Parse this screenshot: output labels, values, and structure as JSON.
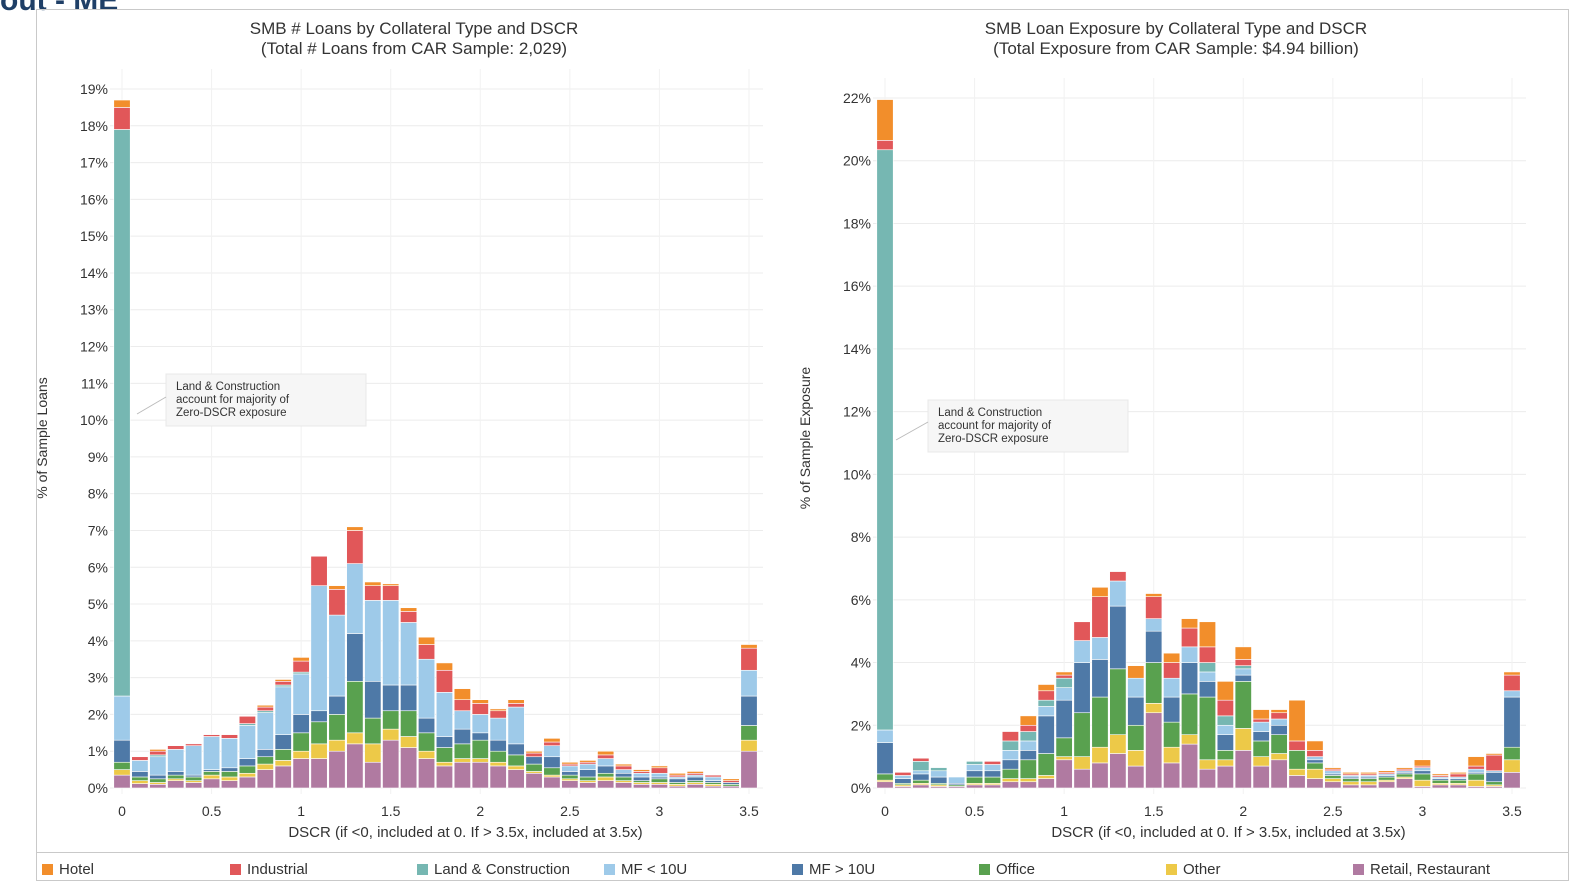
{
  "page_title": "out - ME",
  "colors": {
    "Hotel": "#f28e2b",
    "Industrial": "#e15759",
    "Land & Construction": "#76b7b2",
    "MF < 10U": "#9ecae9",
    "MF > 10U": "#4e79a7",
    "Office": "#59a14f",
    "Other": "#edc948",
    "Retail, Restaurant": "#b07aa1"
  },
  "legend": [
    "Hotel",
    "Industrial",
    "Land & Construction",
    "MF < 10U",
    "MF > 10U",
    "Office",
    "Other",
    "Retail, Restaurant"
  ],
  "chart_data": [
    {
      "type": "bar",
      "stacked": true,
      "title": "SMB # Loans by Collateral Type and DSCR",
      "subtitle": "(Total # Loans from CAR Sample: 2,029)",
      "xlabel": "DSCR (if <0, included at 0. If > 3.5x, included at 3.5x)",
      "ylabel": "% of Sample Loans",
      "xlim": [
        0,
        3.5
      ],
      "xticks": [
        "0",
        "0.5",
        "1",
        "1.5",
        "2",
        "2.5",
        "3",
        "3.5"
      ],
      "ylim": [
        0,
        19
      ],
      "yticks": [
        "0%",
        "1%",
        "2%",
        "3%",
        "4%",
        "5%",
        "6%",
        "7%",
        "8%",
        "9%",
        "10%",
        "11%",
        "12%",
        "13%",
        "14%",
        "15%",
        "16%",
        "17%",
        "18%",
        "19%"
      ],
      "annotation": [
        "Land & Construction",
        "account for majority of",
        "Zero-DSCR exposure"
      ],
      "x": [
        0,
        0.1,
        0.2,
        0.3,
        0.4,
        0.5,
        0.6,
        0.7,
        0.8,
        0.9,
        1.0,
        1.1,
        1.2,
        1.3,
        1.4,
        1.5,
        1.6,
        1.7,
        1.8,
        1.9,
        2.0,
        2.1,
        2.2,
        2.3,
        2.4,
        2.5,
        2.6,
        2.7,
        2.8,
        2.9,
        3.0,
        3.1,
        3.2,
        3.3,
        3.4,
        3.5
      ],
      "series": [
        {
          "name": "Retail, Restaurant",
          "values": [
            0.35,
            0.12,
            0.1,
            0.2,
            0.15,
            0.25,
            0.2,
            0.3,
            0.5,
            0.6,
            0.8,
            0.8,
            1.0,
            1.2,
            0.7,
            1.3,
            1.1,
            0.8,
            0.6,
            0.7,
            0.7,
            0.6,
            0.5,
            0.4,
            0.3,
            0.2,
            0.15,
            0.2,
            0.15,
            0.1,
            0.1,
            0.05,
            0.1,
            0.05,
            0.05,
            1.0
          ]
        },
        {
          "name": "Other",
          "values": [
            0.15,
            0.08,
            0.05,
            0.05,
            0.05,
            0.1,
            0.1,
            0.1,
            0.15,
            0.15,
            0.2,
            0.4,
            0.3,
            0.3,
            0.5,
            0.3,
            0.3,
            0.2,
            0.1,
            0.1,
            0.1,
            0.1,
            0.1,
            0.05,
            0.05,
            0.05,
            0.05,
            0.1,
            0.05,
            0.05,
            0.05,
            0.05,
            0.05,
            0.05,
            0.0,
            0.3
          ]
        },
        {
          "name": "Office",
          "values": [
            0.2,
            0.1,
            0.1,
            0.1,
            0.1,
            0.1,
            0.15,
            0.2,
            0.2,
            0.3,
            0.5,
            0.6,
            0.7,
            1.4,
            0.7,
            0.5,
            0.7,
            0.5,
            0.4,
            0.4,
            0.5,
            0.3,
            0.3,
            0.2,
            0.2,
            0.1,
            0.1,
            0.1,
            0.1,
            0.05,
            0.1,
            0.05,
            0.05,
            0.05,
            0.05,
            0.4
          ]
        },
        {
          "name": "MF > 10U",
          "values": [
            0.6,
            0.15,
            0.1,
            0.1,
            0.05,
            0.05,
            0.1,
            0.2,
            0.2,
            0.4,
            0.5,
            0.3,
            0.5,
            1.3,
            1.0,
            0.7,
            0.7,
            0.4,
            0.3,
            0.4,
            0.2,
            0.3,
            0.3,
            0.2,
            0.3,
            0.1,
            0.2,
            0.2,
            0.1,
            0.1,
            0.05,
            0.1,
            0.1,
            0.05,
            0.05,
            0.8
          ]
        },
        {
          "name": "MF < 10U",
          "values": [
            1.2,
            0.3,
            0.5,
            0.6,
            0.8,
            0.9,
            0.8,
            0.9,
            1.0,
            1.3,
            1.1,
            3.4,
            2.2,
            1.9,
            2.2,
            2.3,
            1.7,
            1.6,
            1.2,
            0.5,
            0.5,
            0.6,
            1.0,
            0.0,
            0.3,
            0.15,
            0.15,
            0.2,
            0.1,
            0.1,
            0.1,
            0.05,
            0.05,
            0.1,
            0.0,
            0.7
          ]
        },
        {
          "name": "Land & Construction",
          "values": [
            15.4,
            0.0,
            0.05,
            0.0,
            0.0,
            0.0,
            0.0,
            0.05,
            0.05,
            0.05,
            0.05,
            0.0,
            0.0,
            0.0,
            0.0,
            0.0,
            0.0,
            0.0,
            0.0,
            0.0,
            0.0,
            0.0,
            0.0,
            0.0,
            0.0,
            0.0,
            0.0,
            0.0,
            0.0,
            0.0,
            0.0,
            0.0,
            0.0,
            0.0,
            0.0,
            0.0
          ]
        },
        {
          "name": "Industrial",
          "values": [
            0.6,
            0.1,
            0.1,
            0.1,
            0.05,
            0.05,
            0.1,
            0.2,
            0.1,
            0.1,
            0.3,
            0.8,
            0.7,
            0.9,
            0.4,
            0.4,
            0.3,
            0.4,
            0.6,
            0.3,
            0.3,
            0.2,
            0.1,
            0.1,
            0.1,
            0.05,
            0.05,
            0.1,
            0.1,
            0.05,
            0.15,
            0.05,
            0.05,
            0.05,
            0.05,
            0.6
          ]
        },
        {
          "name": "Hotel",
          "values": [
            0.2,
            0.0,
            0.05,
            0.0,
            0.0,
            0.0,
            0.0,
            0.0,
            0.05,
            0.05,
            0.1,
            0.0,
            0.1,
            0.1,
            0.1,
            0.05,
            0.1,
            0.2,
            0.2,
            0.3,
            0.1,
            0.05,
            0.1,
            0.05,
            0.1,
            0.05,
            0.05,
            0.1,
            0.05,
            0.05,
            0.05,
            0.05,
            0.05,
            0.0,
            0.05,
            0.1
          ]
        }
      ]
    },
    {
      "type": "bar",
      "stacked": true,
      "title": "SMB Loan Exposure by Collateral Type and DSCR",
      "subtitle": "(Total Exposure from CAR Sample: $4.94 billion)",
      "xlabel": "DSCR (if <0, included at 0. If > 3.5x, included at 3.5x)",
      "ylabel": "% of Sample Exposure",
      "xlim": [
        0,
        3.5
      ],
      "xticks": [
        "0",
        "0.5",
        "1",
        "1.5",
        "2",
        "2.5",
        "3",
        "3.5"
      ],
      "ylim": [
        0,
        22
      ],
      "yticks": [
        "0%",
        "2%",
        "4%",
        "6%",
        "8%",
        "10%",
        "12%",
        "14%",
        "16%",
        "18%",
        "20%",
        "22%"
      ],
      "annotation": [
        "Land & Construction",
        "account for majority of",
        "Zero-DSCR exposure"
      ],
      "x": [
        0,
        0.1,
        0.2,
        0.3,
        0.4,
        0.5,
        0.6,
        0.7,
        0.8,
        0.9,
        1.0,
        1.1,
        1.2,
        1.3,
        1.4,
        1.5,
        1.6,
        1.7,
        1.8,
        1.9,
        2.0,
        2.1,
        2.2,
        2.3,
        2.4,
        2.5,
        2.6,
        2.7,
        2.8,
        2.9,
        3.0,
        3.1,
        3.2,
        3.3,
        3.4,
        3.5
      ],
      "series": [
        {
          "name": "Retail, Restaurant",
          "values": [
            0.2,
            0.05,
            0.1,
            0.05,
            0.05,
            0.1,
            0.1,
            0.2,
            0.2,
            0.3,
            0.9,
            0.6,
            0.8,
            1.1,
            0.7,
            2.4,
            0.8,
            1.4,
            0.6,
            0.7,
            1.2,
            0.7,
            0.9,
            0.4,
            0.3,
            0.2,
            0.1,
            0.1,
            0.2,
            0.3,
            0.05,
            0.1,
            0.1,
            0.05,
            0.05,
            0.5
          ]
        },
        {
          "name": "Other",
          "values": [
            0.05,
            0.05,
            0.05,
            0.05,
            0.0,
            0.05,
            0.05,
            0.1,
            0.1,
            0.1,
            0.1,
            0.4,
            0.5,
            0.6,
            0.5,
            0.3,
            0.5,
            0.3,
            0.3,
            0.2,
            0.7,
            0.3,
            0.2,
            0.2,
            0.3,
            0.1,
            0.1,
            0.1,
            0.05,
            0.05,
            0.2,
            0.05,
            0.05,
            0.2,
            0.05,
            0.4
          ]
        },
        {
          "name": "Office",
          "values": [
            0.2,
            0.05,
            0.1,
            0.05,
            0.05,
            0.2,
            0.2,
            0.3,
            0.6,
            0.7,
            0.6,
            1.4,
            1.6,
            2.1,
            0.8,
            1.3,
            0.8,
            1.3,
            2.0,
            0.3,
            1.5,
            0.5,
            0.6,
            0.6,
            0.2,
            0.1,
            0.1,
            0.1,
            0.1,
            0.1,
            0.2,
            0.1,
            0.1,
            0.2,
            0.1,
            0.4
          ]
        },
        {
          "name": "MF > 10U",
          "values": [
            1.0,
            0.15,
            0.2,
            0.2,
            0.05,
            0.2,
            0.2,
            0.3,
            0.3,
            1.2,
            1.2,
            1.6,
            1.2,
            2.0,
            0.9,
            1.0,
            0.8,
            1.0,
            0.5,
            0.5,
            0.2,
            0.3,
            0.3,
            0.0,
            0.1,
            0.05,
            0.05,
            0.05,
            0.05,
            0.05,
            0.1,
            0.05,
            0.05,
            0.05,
            0.3,
            1.6
          ]
        },
        {
          "name": "MF < 10U",
          "values": [
            0.4,
            0.1,
            0.1,
            0.2,
            0.2,
            0.2,
            0.2,
            0.3,
            0.3,
            0.3,
            0.4,
            0.7,
            0.7,
            0.8,
            0.6,
            0.4,
            0.6,
            0.5,
            0.3,
            0.3,
            0.2,
            0.3,
            0.2,
            0.0,
            0.1,
            0.1,
            0.05,
            0.05,
            0.05,
            0.05,
            0.1,
            0.05,
            0.05,
            0.1,
            0.05,
            0.2
          ]
        },
        {
          "name": "Land & Construction",
          "values": [
            18.5,
            0.0,
            0.3,
            0.1,
            0.0,
            0.1,
            0.0,
            0.3,
            0.3,
            0.2,
            0.3,
            0.0,
            0.0,
            0.0,
            0.0,
            0.0,
            0.0,
            0.0,
            0.3,
            0.3,
            0.1,
            0.0,
            0.0,
            0.0,
            0.0,
            0.0,
            0.0,
            0.0,
            0.0,
            0.0,
            0.0,
            0.0,
            0.0,
            0.0,
            0.0,
            0.0
          ]
        },
        {
          "name": "Industrial",
          "values": [
            0.3,
            0.1,
            0.1,
            0.0,
            0.0,
            0.0,
            0.1,
            0.3,
            0.2,
            0.3,
            0.1,
            0.6,
            1.3,
            0.3,
            0.0,
            0.7,
            0.5,
            0.6,
            0.5,
            0.5,
            0.2,
            0.1,
            0.2,
            0.3,
            0.2,
            0.05,
            0.05,
            0.05,
            0.05,
            0.05,
            0.05,
            0.05,
            0.1,
            0.1,
            0.5,
            0.5
          ]
        },
        {
          "name": "Hotel",
          "values": [
            1.3,
            0.0,
            0.0,
            0.0,
            0.0,
            0.0,
            0.0,
            0.0,
            0.3,
            0.2,
            0.1,
            0.0,
            0.3,
            0.0,
            0.4,
            0.1,
            0.3,
            0.3,
            0.8,
            0.6,
            0.4,
            0.3,
            0.1,
            1.3,
            0.3,
            0.05,
            0.05,
            0.05,
            0.05,
            0.05,
            0.2,
            0.05,
            0.05,
            0.3,
            0.05,
            0.1
          ]
        }
      ]
    }
  ]
}
